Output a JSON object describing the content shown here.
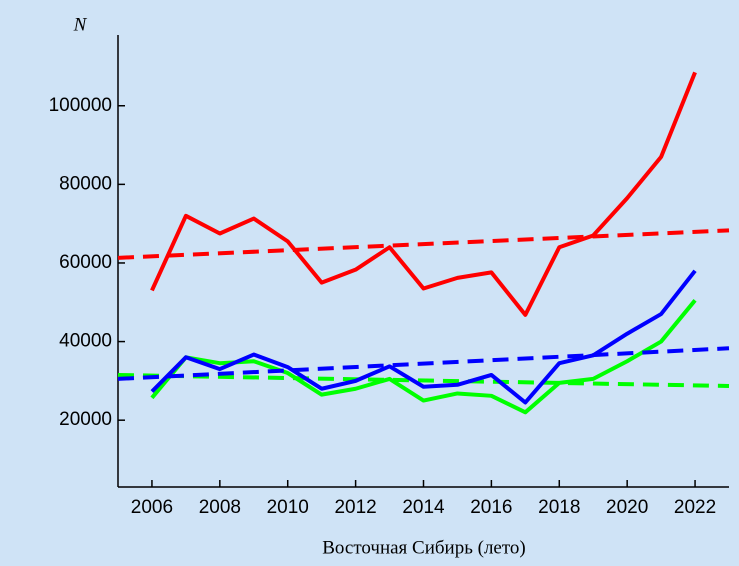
{
  "chart_data": {
    "type": "line",
    "title": "N",
    "x_label": "Восточная Сибирь (лето)",
    "xlim": [
      2005,
      2023
    ],
    "xticks": [
      2006,
      2008,
      2010,
      2012,
      2014,
      2016,
      2018,
      2020,
      2022
    ],
    "ylim": [
      3000,
      118000
    ],
    "yticks": [
      20000,
      40000,
      60000,
      80000,
      100000
    ],
    "series": [
      {
        "color": "#ff0000",
        "dashed": false,
        "x": [
          2006,
          2007,
          2008,
          2009,
          2010,
          2011,
          2012,
          2013,
          2014,
          2015,
          2016,
          2017,
          2018,
          2019,
          2020,
          2021,
          2022
        ],
        "values": [
          53000,
          72000,
          67500,
          71300,
          65500,
          55000,
          58300,
          64000,
          53500,
          56200,
          57600,
          46800,
          64000,
          67000,
          76500,
          87000,
          108500
        ]
      },
      {
        "color": "#ff0000",
        "dashed": true,
        "x": [
          2005,
          2023
        ],
        "values": [
          61300,
          68300
        ]
      },
      {
        "color": "#00ff00",
        "dashed": false,
        "x": [
          2006,
          2007,
          2008,
          2009,
          2010,
          2011,
          2012,
          2013,
          2014,
          2015,
          2016,
          2017,
          2018,
          2019,
          2020,
          2021,
          2022
        ],
        "values": [
          25700,
          36000,
          34500,
          35000,
          32000,
          26500,
          28000,
          30500,
          25000,
          26800,
          26200,
          22000,
          29500,
          30500,
          35000,
          40000,
          50500
        ]
      },
      {
        "color": "#00ff00",
        "dashed": true,
        "x": [
          2005,
          2023
        ],
        "values": [
          31500,
          28700
        ]
      },
      {
        "color": "#0000ff",
        "dashed": false,
        "x": [
          2006,
          2007,
          2008,
          2009,
          2010,
          2011,
          2012,
          2013,
          2014,
          2015,
          2016,
          2017,
          2018,
          2019,
          2020,
          2021,
          2022
        ],
        "values": [
          27300,
          36000,
          33000,
          36700,
          33500,
          28000,
          30000,
          33700,
          28500,
          29000,
          31500,
          24500,
          34500,
          36500,
          42000,
          47000,
          58000
        ]
      },
      {
        "color": "#0000ff",
        "dashed": true,
        "x": [
          2005,
          2023
        ],
        "values": [
          30500,
          38300
        ]
      }
    ]
  }
}
